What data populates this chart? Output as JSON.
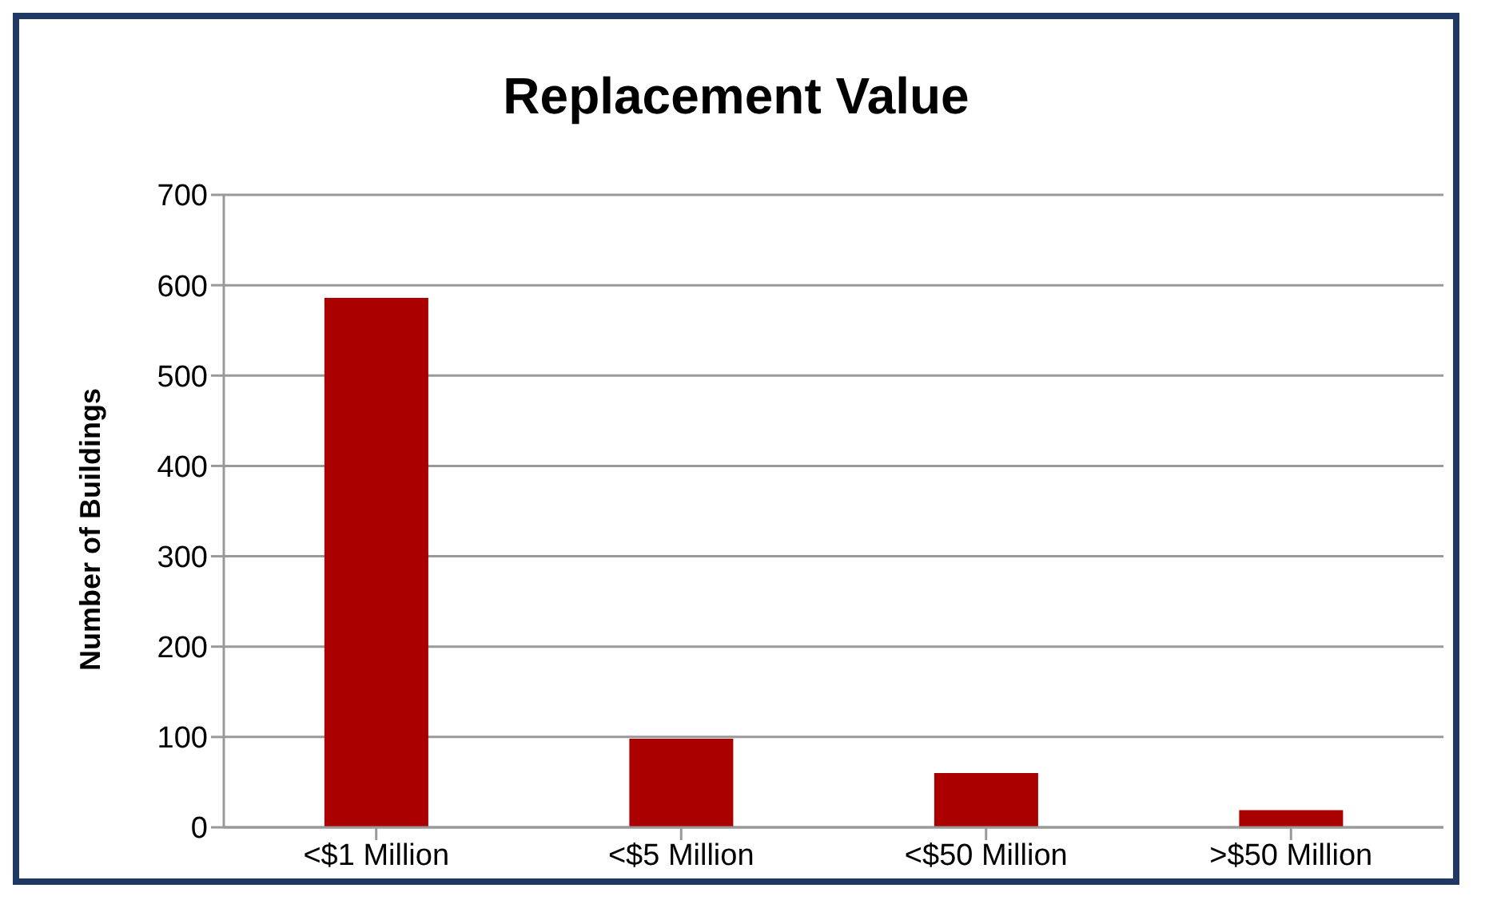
{
  "chart_data": {
    "type": "bar",
    "title": "Replacement Value",
    "ylabel": "Number of Buildings",
    "categories": [
      "<$1 Million",
      "<$5 Million",
      "<$50 Million",
      ">$50 Million"
    ],
    "values": [
      586,
      98,
      60,
      19
    ],
    "color": "#aa0000",
    "ylim": [
      0,
      700
    ],
    "yticks": [
      0,
      100,
      200,
      300,
      400,
      500,
      600,
      700
    ],
    "grid": "y"
  }
}
